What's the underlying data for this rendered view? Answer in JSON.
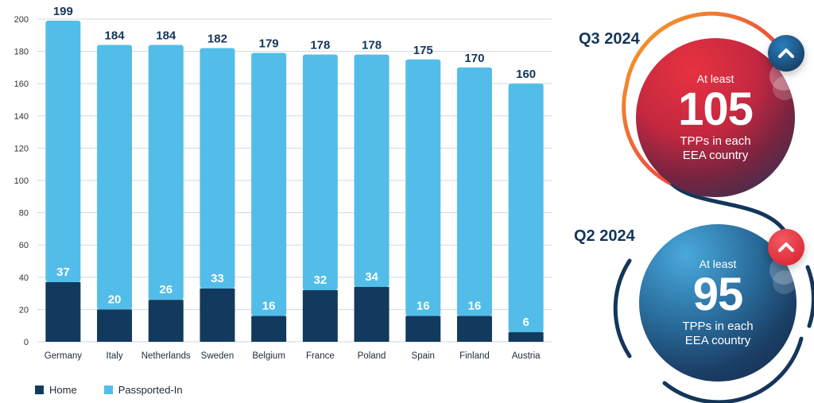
{
  "chart_data": {
    "type": "bar",
    "stacked": true,
    "categories": [
      "Germany",
      "Italy",
      "Netherlands",
      "Sweden",
      "Belgium",
      "France",
      "Poland",
      "Spain",
      "Finland",
      "Austria"
    ],
    "series": [
      {
        "name": "Home",
        "color": "#123a5e",
        "values": [
          37,
          20,
          26,
          33,
          16,
          32,
          34,
          16,
          16,
          6
        ]
      },
      {
        "name": "Passported-In",
        "color": "#52bde9",
        "values": [
          162,
          164,
          158,
          149,
          163,
          146,
          144,
          159,
          154,
          154
        ]
      }
    ],
    "totals": [
      199,
      184,
      184,
      182,
      179,
      178,
      178,
      175,
      170,
      160
    ],
    "home_labels": [
      "37",
      "20",
      "26",
      "33",
      "16",
      "32",
      "34",
      "16",
      "16",
      "6"
    ],
    "total_labels": [
      "199",
      "184",
      "184",
      "182",
      "179",
      "178",
      "178",
      "175",
      "170",
      "160"
    ],
    "yticks": [
      0,
      20,
      40,
      60,
      80,
      100,
      120,
      140,
      160,
      180,
      200
    ],
    "ylim": [
      0,
      200
    ],
    "grid": true,
    "legend_position": "bottom-left"
  },
  "legend": {
    "home": "Home",
    "passported": "Passported-In"
  },
  "highlights": {
    "q3": {
      "quarter": "Q3 2024",
      "prefix": "At least",
      "value": "105",
      "line1": "TPPs in each",
      "line2": "EEA country",
      "arrow": "chevron-up-icon"
    },
    "q2": {
      "quarter": "Q2 2024",
      "prefix": "At least",
      "value": "95",
      "line1": "TPPs in each",
      "line2": "EEA country",
      "arrow": "chevron-up-icon"
    }
  },
  "colors": {
    "home": "#123a5e",
    "passported": "#52bde9",
    "red": "#e8323f",
    "navy": "#14365a",
    "orange": "#f5a623"
  }
}
